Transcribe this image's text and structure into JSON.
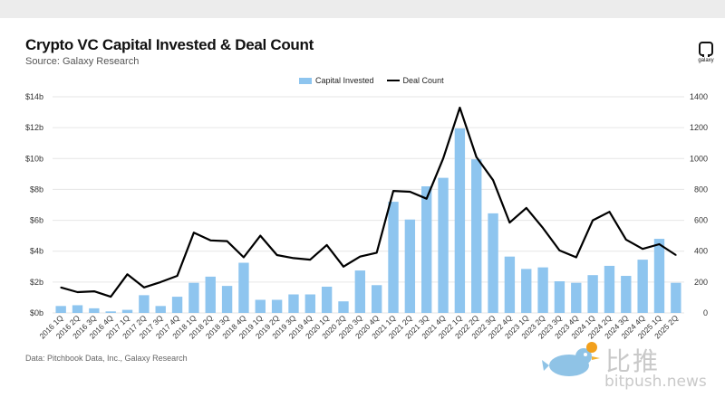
{
  "header": {
    "title": "Crypto VC Capital Invested & Deal Count",
    "subtitle": "Source: Galaxy Research",
    "logo_text": "galaxy"
  },
  "footer": {
    "note": "Data: Pitchbook Data, Inc., Galaxy Research"
  },
  "watermark": {
    "zh": "比推",
    "en": "bitpush.news"
  },
  "colors": {
    "bars": "#8ec5ef",
    "line": "#000000",
    "grid": "#e6e6e6"
  },
  "chart_data": {
    "type": "bar",
    "legend": [
      "Capital Invested",
      "Deal Count"
    ],
    "legend_position": "top-center",
    "grid": true,
    "categories": [
      "2016 1Q",
      "2016 2Q",
      "2016 3Q",
      "2016 4Q",
      "2017 1Q",
      "2017 2Q",
      "2017 3Q",
      "2017 4Q",
      "2018 1Q",
      "2018 2Q",
      "2018 3Q",
      "2018 4Q",
      "2019 1Q",
      "2019 2Q",
      "2019 3Q",
      "2019 4Q",
      "2020 1Q",
      "2020 2Q",
      "2020 3Q",
      "2020 4Q",
      "2021 1Q",
      "2021 2Q",
      "2021 3Q",
      "2021 4Q",
      "2022 1Q",
      "2022 2Q",
      "2022 3Q",
      "2022 4Q",
      "2023 1Q",
      "2023 2Q",
      "2023 3Q",
      "2023 4Q",
      "2024 1Q",
      "2024 2Q",
      "2024 3Q",
      "2024 4Q",
      "2025 1Q",
      "2025 2Q"
    ],
    "series": [
      {
        "name": "Capital Invested",
        "type": "bar",
        "axis": "left",
        "values": [
          0.45,
          0.5,
          0.3,
          0.1,
          0.2,
          1.15,
          0.45,
          1.05,
          1.95,
          2.35,
          1.75,
          3.25,
          0.85,
          0.85,
          1.2,
          1.2,
          1.7,
          0.75,
          2.75,
          1.8,
          7.2,
          6.05,
          8.2,
          8.75,
          11.95,
          9.95,
          6.45,
          3.65,
          2.85,
          2.95,
          2.05,
          1.95,
          2.45,
          3.05,
          2.4,
          3.45,
          4.8,
          1.95
        ]
      },
      {
        "name": "Deal Count",
        "type": "line",
        "axis": "right",
        "values": [
          165,
          135,
          140,
          105,
          250,
          165,
          200,
          240,
          520,
          470,
          465,
          360,
          500,
          375,
          355,
          345,
          440,
          300,
          365,
          390,
          790,
          785,
          740,
          1000,
          1330,
          1010,
          860,
          585,
          680,
          550,
          405,
          360,
          600,
          655,
          475,
          415,
          445,
          375
        ]
      }
    ],
    "y_left": {
      "ticks": [
        "$0b",
        "$2b",
        "$4b",
        "$6b",
        "$8b",
        "$10b",
        "$12b",
        "$14b"
      ],
      "ylim": [
        0,
        14
      ]
    },
    "y_right": {
      "ticks": [
        "0",
        "200",
        "400",
        "600",
        "800",
        "1000",
        "1200",
        "1400"
      ],
      "ylim": [
        0,
        1400
      ]
    }
  }
}
